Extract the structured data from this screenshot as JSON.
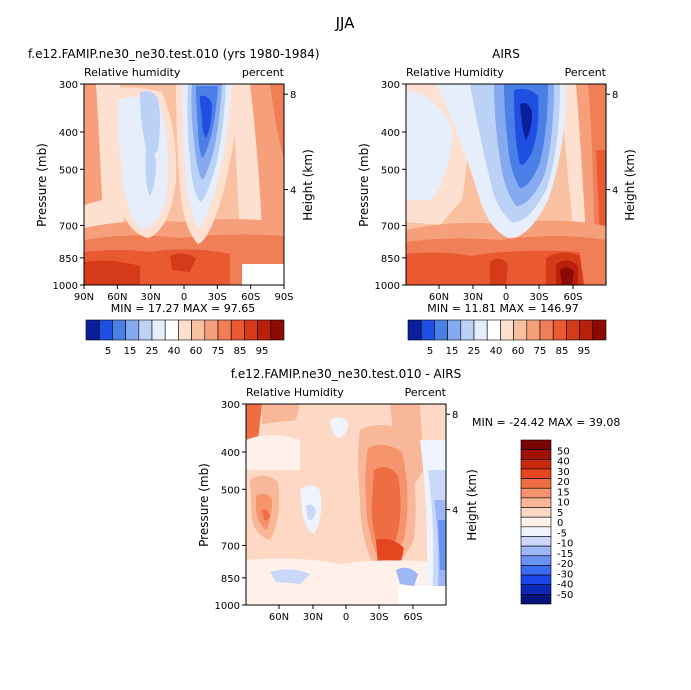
{
  "page": {
    "title": "JJA"
  },
  "colors": {
    "palette_abs": [
      "#0b1f9c",
      "#1f4fe0",
      "#4a7fe8",
      "#86aaf0",
      "#bcd1f6",
      "#e6eefb",
      "#ffffff",
      "#fde0cf",
      "#f9c0a2",
      "#f5a07a",
      "#f07e57",
      "#ea5a32",
      "#d53a19",
      "#b8200c",
      "#8c0a04"
    ],
    "palette_diff": [
      "#06147a",
      "#0c28b6",
      "#1a46e8",
      "#3a6cf0",
      "#6a92f3",
      "#9cb6f6",
      "#c9d8f9",
      "#eef3fd",
      "#fff1ea",
      "#fdd8c4",
      "#f9b799",
      "#f4936c",
      "#ee6d43",
      "#e4461f",
      "#c92a0d",
      "#a01304",
      "#7a0601"
    ]
  },
  "chart_data": [
    {
      "type": "heatmap",
      "title": "f.e12.FAMIP.ne30_ne30.test.010 (yrs 1980-1984)",
      "left_label": "Relative humidity",
      "right_label": "percent",
      "xlabel": "",
      "ylabel": "Pressure (mb)",
      "y2label": "Height (km)",
      "x_ticks": [
        "90N",
        "60N",
        "30N",
        "0",
        "30S",
        "60S",
        "90S"
      ],
      "y_ticks": [
        "300",
        "400",
        "500",
        "700",
        "850",
        "1000"
      ],
      "y2_ticks": [
        "8",
        "4"
      ],
      "stats": "MIN =   17.27   MAX =   97.65",
      "colorbar": {
        "labels": [
          "5",
          "15",
          "25",
          "40",
          "60",
          "75",
          "85",
          "95"
        ]
      }
    },
    {
      "type": "heatmap",
      "title": "AIRS",
      "left_label": "Relative Humidity",
      "right_label": "Percent",
      "xlabel": "",
      "ylabel": "Pressure (mb)",
      "y2label": "Height (km)",
      "x_ticks": [
        "60N",
        "30N",
        "0",
        "30S",
        "60S"
      ],
      "y_ticks": [
        "300",
        "400",
        "500",
        "700",
        "850",
        "1000"
      ],
      "y2_ticks": [
        "8",
        "4"
      ],
      "stats": "MIN =   11.81   MAX =  146.97",
      "colorbar": {
        "labels": [
          "5",
          "15",
          "25",
          "40",
          "60",
          "75",
          "85",
          "95"
        ]
      }
    },
    {
      "type": "heatmap",
      "title": "f.e12.FAMIP.ne30_ne30.test.010 - AIRS",
      "left_label": "Relative Humidity",
      "right_label": "Percent",
      "xlabel": "",
      "ylabel": "Pressure (mb)",
      "y2label": "Height (km)",
      "x_ticks": [
        "60N",
        "30N",
        "0",
        "30S",
        "60S"
      ],
      "y_ticks": [
        "300",
        "400",
        "500",
        "700",
        "850",
        "1000"
      ],
      "y2_ticks": [
        "8",
        "4"
      ],
      "stats": "MIN = -24.42   MAX =  39.08",
      "colorbar": {
        "labels": [
          "50",
          "40",
          "30",
          "20",
          "15",
          "10",
          "5",
          "0",
          "-5",
          "-10",
          "-15",
          "-20",
          "-30",
          "-40",
          "-50"
        ]
      }
    }
  ]
}
